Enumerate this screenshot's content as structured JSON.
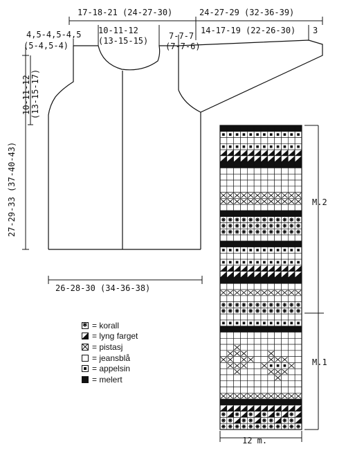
{
  "dimensions": {
    "top_neck": "17-18-21  (24-27-30)",
    "top_sleeve": "24-27-29  (32-36-39)",
    "shoulder": "4,5-4,5-4,5",
    "shoulder_alt": "(5-4,5-4)",
    "neck_depth": "10-11-12",
    "neck_depth_alt": "(13-15-15)",
    "front_neck": "7-7-7",
    "front_neck_alt": "(7-7-6)",
    "sleeve_upper": "14-17-19  (22-26-30)",
    "cuff": "3",
    "armhole": "10-11-12",
    "armhole_alt": "(13-15-17)",
    "body_length": "27-29-33  (37-40-43)",
    "body_width": "26-28-30  (34-36-38)"
  },
  "legend": [
    {
      "key": "korall",
      "label": "= korall"
    },
    {
      "key": "lyng",
      "label": "= lyng farget"
    },
    {
      "key": "pistasj",
      "label": "= pistasj"
    },
    {
      "key": "jeansbla",
      "label": "= jeansblå"
    },
    {
      "key": "appelsin",
      "label": "= appelsin"
    },
    {
      "key": "melert",
      "label": "= melert"
    }
  ],
  "chart": {
    "columns": 12,
    "width_label": "12 m.",
    "section_m2": "M.2",
    "section_m1": "M.1",
    "rows": [
      "BBBBBBBBBBBB",
      "OOOOOOOOOOOO",
      "WWWWWWWWWWWW",
      "OOOOOOOOOOOO",
      "LLLLLLLLLLLL",
      "LLLLLLLLLLLL",
      "BBBBBBBBBBBB",
      "WWWWWWWWWWWW",
      "WWWWWWWWWWWW",
      "WWWWWWWWWWWW",
      "WWWWWWWWWWWW",
      "XXXXXXXXXXXX",
      "XXXXXXXXXXXX",
      "WWWWWWWWWWWW",
      "BBBBBBBBBBBB",
      "KKKKKKKKKKKK",
      "KKKKKKKKKKKK",
      "KKKKKKKKKKKK",
      "WWWWWWWWWWWW",
      "BBBBBBBBBBBB",
      "OOOOOOOOOOOO",
      "WWWWWWWWWWWW",
      "OOOOOOOOOOOO",
      "LLLLLLLLLLLL",
      "LLLLLLLLLLLL",
      "BBBBBBBBBBBB",
      "WWWWWWWWWWWW",
      "XXXXXXXXXXXX",
      "WWWWWWWWWWWW",
      "KKKKKKKKKKKK",
      "KKKKKKKKKKKK",
      "WWWWWWWWWWWW",
      "OOOOOOOOOOOO",
      "BBBBBBBBBBBB",
      "WWWWWWWWWWWW",
      "WWWWWWWWWWWW",
      "WWXWWWWWWWWW",
      "WXXXWWWXWWWW",
      "XXWXXWWXXXWW",
      "WXXXWWXOOOXW",
      "WWXWWWWXXXWW",
      "WWWWWWWWXWWW",
      "WWWWWWWWWWWW",
      "WWWWWWWWWWWW",
      "XXXXXXXXXXXX",
      "BBBBBBBBBBBB",
      "LLLLLLLLLLLL",
      "KLKLKLKLKLKL",
      "KKLKKLKKLKKL",
      "KKKKKKKKKKKK"
    ]
  }
}
